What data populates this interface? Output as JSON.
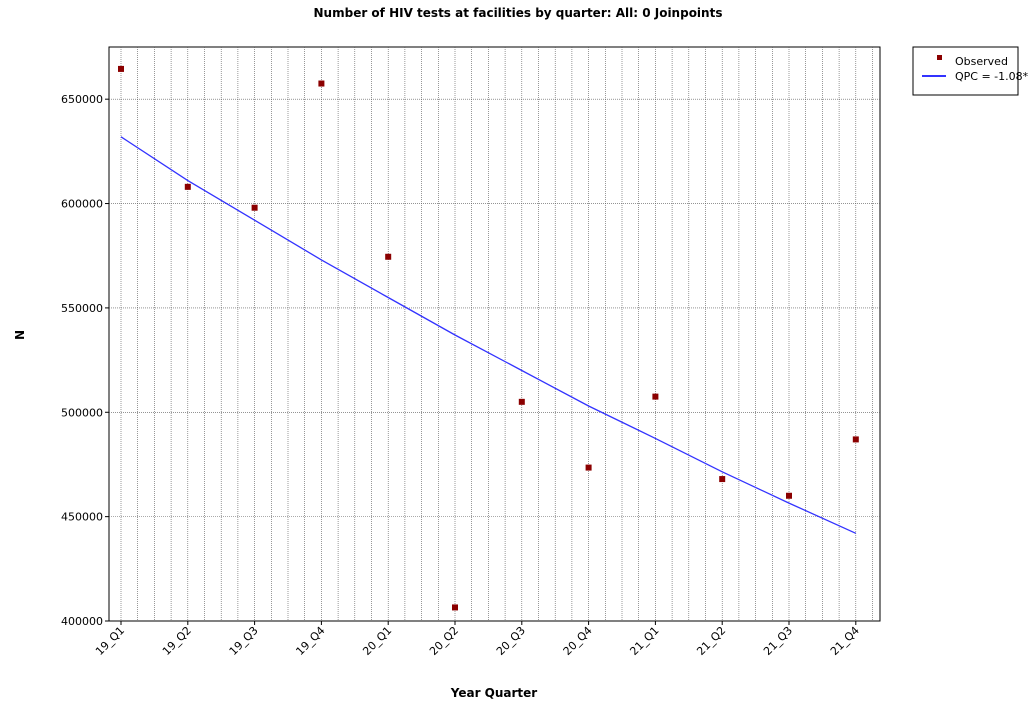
{
  "chart_data": {
    "type": "scatter",
    "title": "Number of HIV tests at facilities by quarter: All: 0 Joinpoints",
    "xlabel": "Year Quarter",
    "ylabel": "N",
    "categories": [
      "19_Q1",
      "19_Q2",
      "19_Q3",
      "19_Q4",
      "20_Q1",
      "20_Q2",
      "20_Q3",
      "20_Q4",
      "21_Q1",
      "21_Q2",
      "21_Q3",
      "21_Q4"
    ],
    "ylim": [
      400000,
      675000
    ],
    "yticks": [
      400000,
      450000,
      500000,
      550000,
      600000,
      650000
    ],
    "grid": "dotted vertical and horizontal",
    "legend_position": "top-right outside",
    "series": [
      {
        "name": "Observed",
        "kind": "points",
        "color": "#8b0000",
        "values": [
          664500,
          608000,
          598000,
          657500,
          574500,
          406500,
          505000,
          473500,
          507500,
          468000,
          460000,
          487000
        ]
      },
      {
        "name": "QPC = -1.08*",
        "kind": "line",
        "color": "#3333ff",
        "values": [
          632000,
          611000,
          592000,
          573000,
          555000,
          537000,
          520000,
          503000,
          487500,
          471500,
          456500,
          442000
        ]
      }
    ]
  }
}
